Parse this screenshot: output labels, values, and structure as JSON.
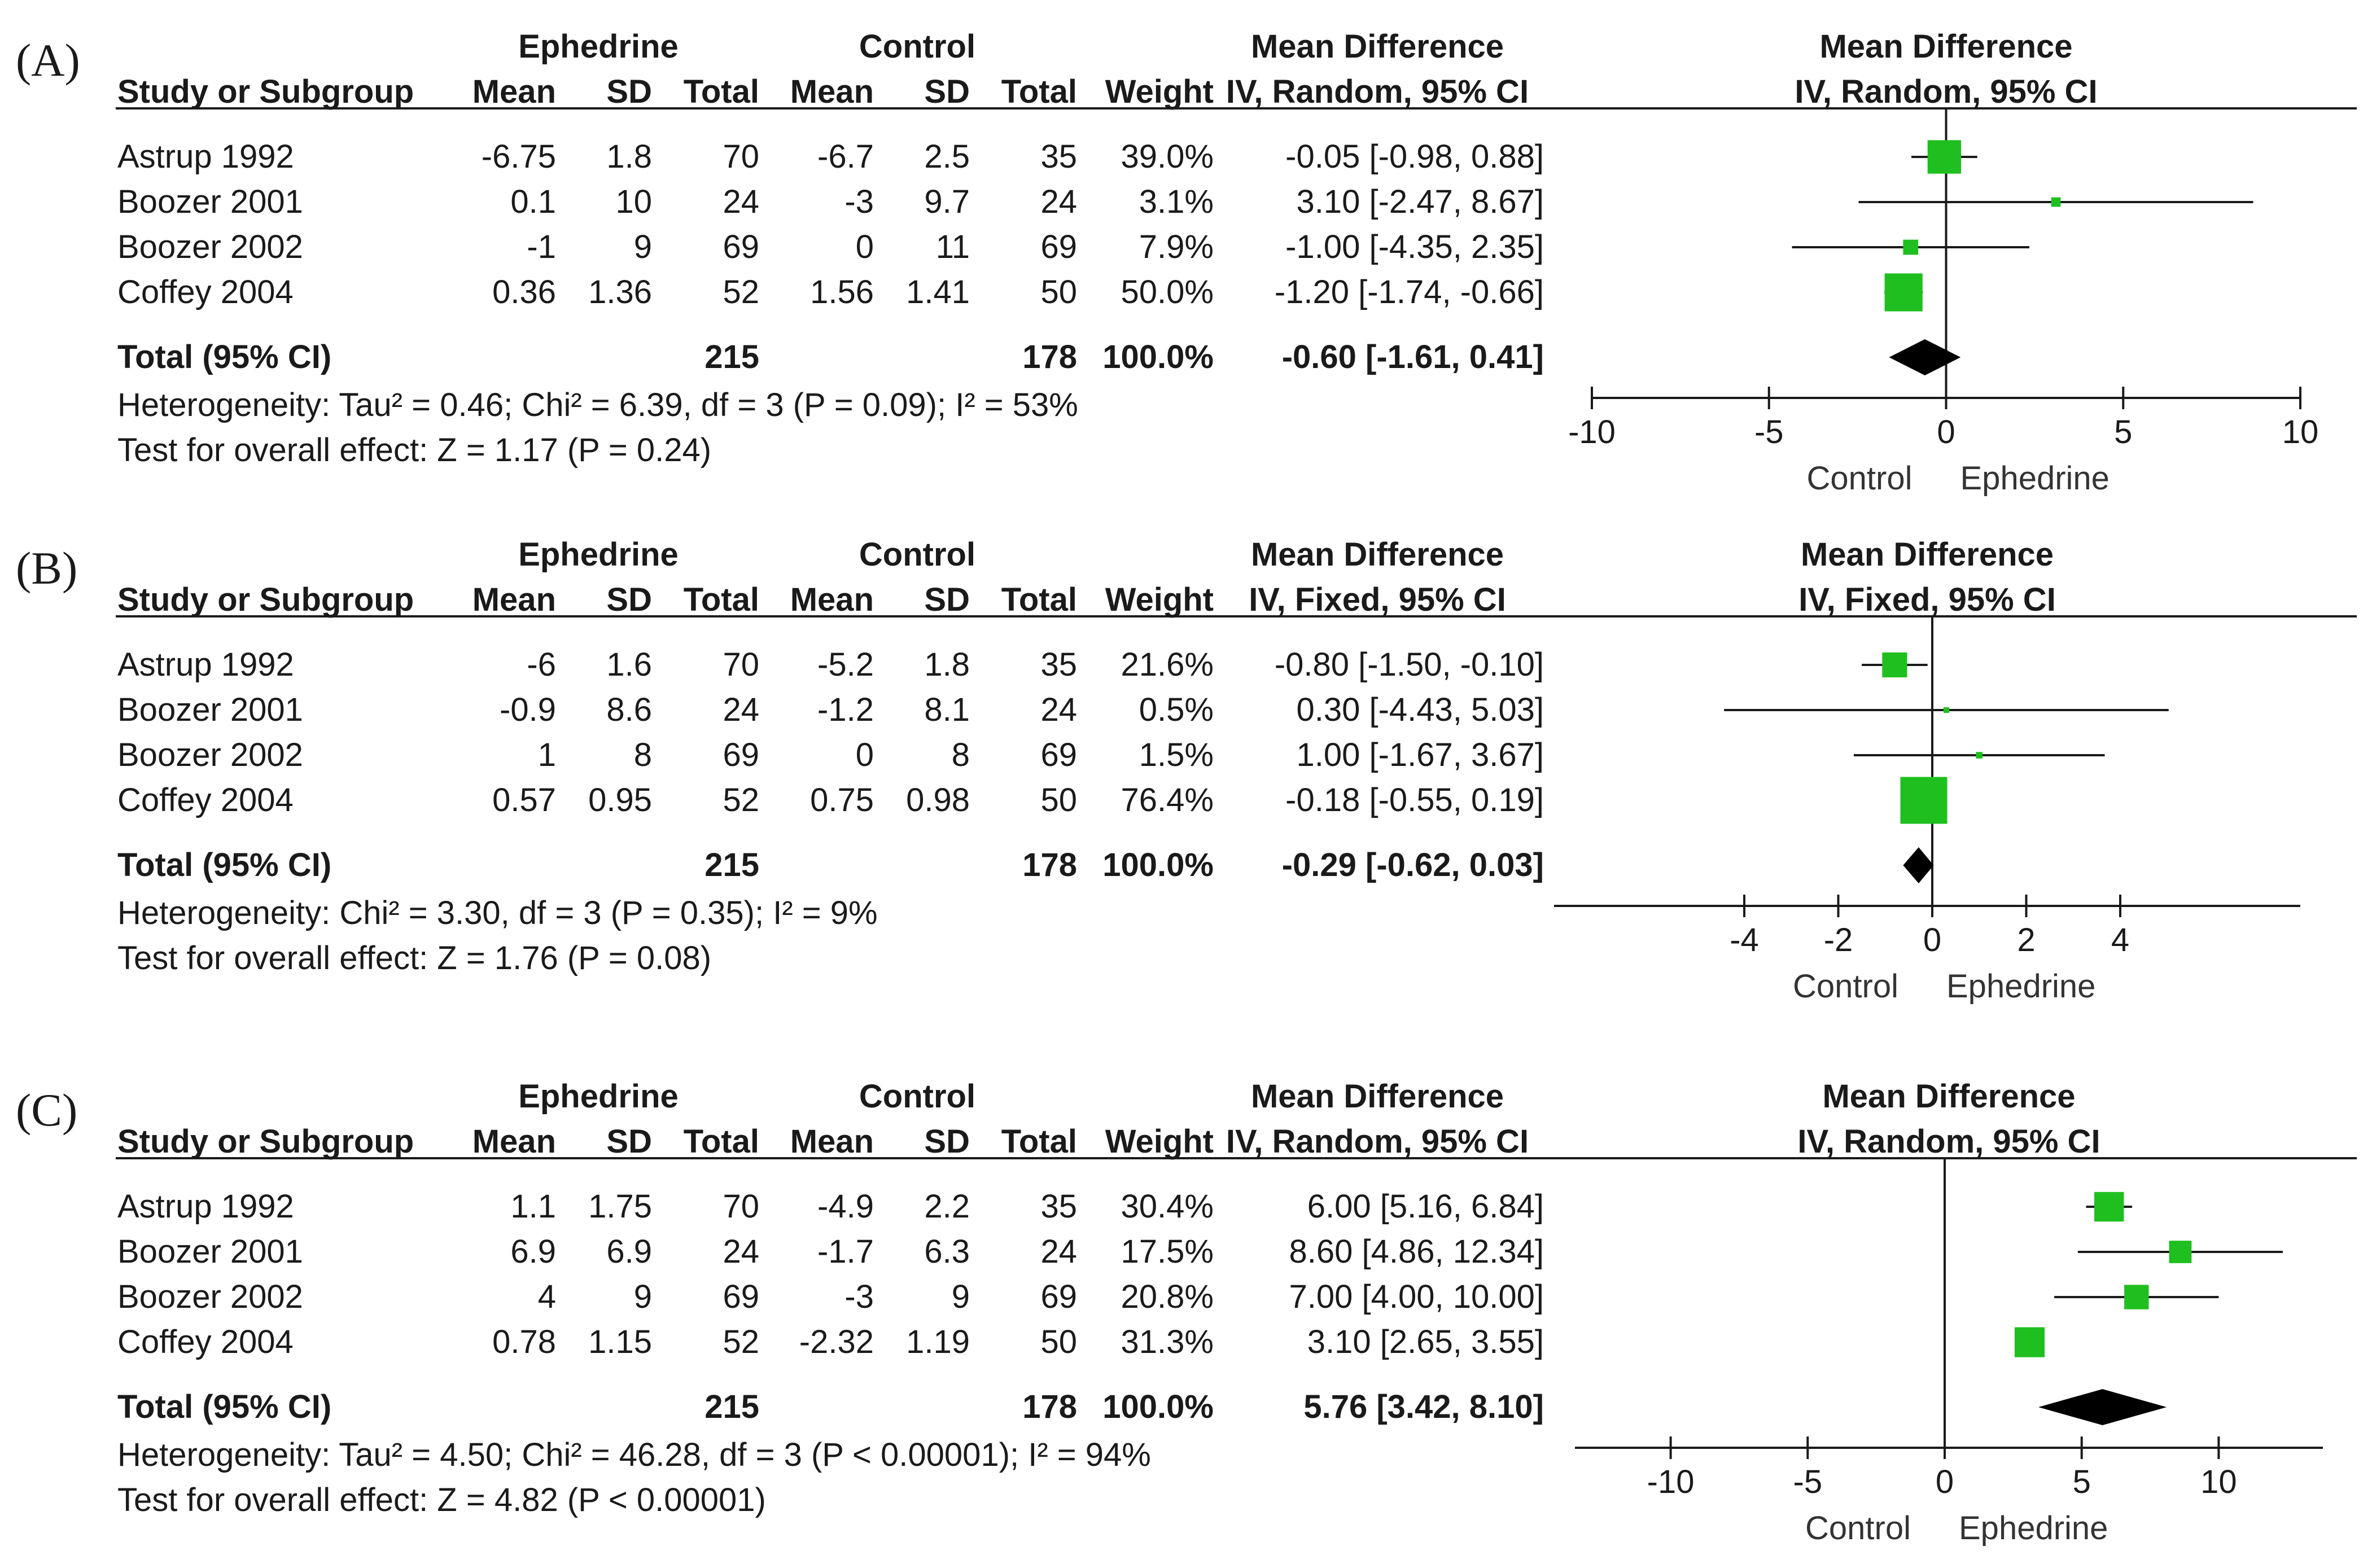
{
  "chart_data": [
    {
      "type": "forest",
      "panel_label": "(A)",
      "group1": "Ephedrine",
      "group2": "Control",
      "ci_header": "Mean Difference",
      "ci_subheader": "IV, Random, 95% CI",
      "plot_header": "Mean Difference",
      "plot_subheader": "IV, Random, 95% CI",
      "columns": [
        "Study or Subgroup",
        "Mean",
        "SD",
        "Total",
        "Mean",
        "SD",
        "Total",
        "Weight"
      ],
      "studies": [
        {
          "name": "Astrup 1992",
          "m1": "-6.75",
          "sd1": "1.8",
          "n1": "70",
          "m2": "-6.7",
          "sd2": "2.5",
          "n2": "35",
          "weight": "39.0%",
          "ci": "-0.05 [-0.98, 0.88]",
          "md": -0.05,
          "lo": -0.98,
          "hi": 0.88,
          "w": 39.0
        },
        {
          "name": "Boozer 2001",
          "m1": "0.1",
          "sd1": "10",
          "n1": "24",
          "m2": "-3",
          "sd2": "9.7",
          "n2": "24",
          "weight": "3.1%",
          "ci": "3.10 [-2.47, 8.67]",
          "md": 3.1,
          "lo": -2.47,
          "hi": 8.67,
          "w": 3.1
        },
        {
          "name": "Boozer 2002",
          "m1": "-1",
          "sd1": "9",
          "n1": "69",
          "m2": "0",
          "sd2": "11",
          "n2": "69",
          "weight": "7.9%",
          "ci": "-1.00 [-4.35, 2.35]",
          "md": -1.0,
          "lo": -4.35,
          "hi": 2.35,
          "w": 7.9
        },
        {
          "name": "Coffey 2004",
          "m1": "0.36",
          "sd1": "1.36",
          "n1": "52",
          "m2": "1.56",
          "sd2": "1.41",
          "n2": "50",
          "weight": "50.0%",
          "ci": "-1.20 [-1.74, -0.66]",
          "md": -1.2,
          "lo": -1.74,
          "hi": -0.66,
          "w": 50.0
        }
      ],
      "total": {
        "label": "Total (95% CI)",
        "n1": "215",
        "n2": "178",
        "weight": "100.0%",
        "ci": "-0.60 [-1.61, 0.41]",
        "md": -0.6,
        "lo": -1.61,
        "hi": 0.41
      },
      "heterogeneity": "Heterogeneity: Tau² = 0.46; Chi² = 6.39, df = 3 (P = 0.09); I² = 53%",
      "overall": "Test for overall effect: Z = 1.17 (P = 0.24)",
      "xlim": [
        -10,
        10
      ],
      "ticks": [
        -10,
        -5,
        0,
        5,
        10
      ],
      "tick_labels": [
        "-10",
        "-5",
        "0",
        "5",
        "10"
      ],
      "favours_left": "Control",
      "favours_right": "Ephedrine"
    },
    {
      "type": "forest",
      "panel_label": "(B)",
      "group1": "Ephedrine",
      "group2": "Control",
      "ci_header": "Mean Difference",
      "ci_subheader": "IV, Fixed, 95% CI",
      "plot_header": "Mean Difference",
      "plot_subheader": "IV, Fixed, 95% CI",
      "columns": [
        "Study or Subgroup",
        "Mean",
        "SD",
        "Total",
        "Mean",
        "SD",
        "Total",
        "Weight"
      ],
      "studies": [
        {
          "name": "Astrup 1992",
          "m1": "-6",
          "sd1": "1.6",
          "n1": "70",
          "m2": "-5.2",
          "sd2": "1.8",
          "n2": "35",
          "weight": "21.6%",
          "ci": "-0.80 [-1.50, -0.10]",
          "md": -0.8,
          "lo": -1.5,
          "hi": -0.1,
          "w": 21.6
        },
        {
          "name": "Boozer 2001",
          "m1": "-0.9",
          "sd1": "8.6",
          "n1": "24",
          "m2": "-1.2",
          "sd2": "8.1",
          "n2": "24",
          "weight": "0.5%",
          "ci": "0.30 [-4.43, 5.03]",
          "md": 0.3,
          "lo": -4.43,
          "hi": 5.03,
          "w": 0.5
        },
        {
          "name": "Boozer 2002",
          "m1": "1",
          "sd1": "8",
          "n1": "69",
          "m2": "0",
          "sd2": "8",
          "n2": "69",
          "weight": "1.5%",
          "ci": "1.00 [-1.67, 3.67]",
          "md": 1.0,
          "lo": -1.67,
          "hi": 3.67,
          "w": 1.5
        },
        {
          "name": "Coffey 2004",
          "m1": "0.57",
          "sd1": "0.95",
          "n1": "52",
          "m2": "0.75",
          "sd2": "0.98",
          "n2": "50",
          "weight": "76.4%",
          "ci": "-0.18 [-0.55, 0.19]",
          "md": -0.18,
          "lo": -0.55,
          "hi": 0.19,
          "w": 76.4
        }
      ],
      "total": {
        "label": "Total (95% CI)",
        "n1": "215",
        "n2": "178",
        "weight": "100.0%",
        "ci": "-0.29 [-0.62, 0.03]",
        "md": -0.29,
        "lo": -0.62,
        "hi": 0.03
      },
      "heterogeneity": "Heterogeneity: Chi² = 3.30, df = 3 (P = 0.35); I² = 9%",
      "overall": "Test for overall effect: Z = 1.76 (P = 0.08)",
      "xlim": [
        -8,
        8
      ],
      "ticks": [
        -4,
        -2,
        0,
        2,
        4
      ],
      "tick_labels": [
        "-4",
        "-2",
        "0",
        "2",
        "4"
      ],
      "favours_left": "Control",
      "favours_right": "Ephedrine"
    },
    {
      "type": "forest",
      "panel_label": "(C)",
      "group1": "Ephedrine",
      "group2": "Control",
      "ci_header": "Mean Difference",
      "ci_subheader": "IV, Random, 95% CI",
      "plot_header": "Mean Difference",
      "plot_subheader": "IV, Random, 95% CI",
      "columns": [
        "Study or Subgroup",
        "Mean",
        "SD",
        "Total",
        "Mean",
        "SD",
        "Total",
        "Weight"
      ],
      "studies": [
        {
          "name": "Astrup 1992",
          "m1": "1.1",
          "sd1": "1.75",
          "n1": "70",
          "m2": "-4.9",
          "sd2": "2.2",
          "n2": "35",
          "weight": "30.4%",
          "ci": "6.00 [5.16, 6.84]",
          "md": 6.0,
          "lo": 5.16,
          "hi": 6.84,
          "w": 30.4
        },
        {
          "name": "Boozer 2001",
          "m1": "6.9",
          "sd1": "6.9",
          "n1": "24",
          "m2": "-1.7",
          "sd2": "6.3",
          "n2": "24",
          "weight": "17.5%",
          "ci": "8.60 [4.86, 12.34]",
          "md": 8.6,
          "lo": 4.86,
          "hi": 12.34,
          "w": 17.5
        },
        {
          "name": "Boozer 2002",
          "m1": "4",
          "sd1": "9",
          "n1": "69",
          "m2": "-3",
          "sd2": "9",
          "n2": "69",
          "weight": "20.8%",
          "ci": "7.00 [4.00, 10.00]",
          "md": 7.0,
          "lo": 4.0,
          "hi": 10.0,
          "w": 20.8
        },
        {
          "name": "Coffey 2004",
          "m1": "0.78",
          "sd1": "1.15",
          "n1": "52",
          "m2": "-2.32",
          "sd2": "1.19",
          "n2": "50",
          "weight": "31.3%",
          "ci": "3.10 [2.65, 3.55]",
          "md": 3.1,
          "lo": 2.65,
          "hi": 3.55,
          "w": 31.3
        }
      ],
      "total": {
        "label": "Total (95% CI)",
        "n1": "215",
        "n2": "178",
        "weight": "100.0%",
        "ci": "5.76 [3.42, 8.10]",
        "md": 5.76,
        "lo": 3.42,
        "hi": 8.1
      },
      "heterogeneity": "Heterogeneity: Tau² = 4.50; Chi² = 46.28, df = 3 (P < 0.00001); I² = 94%",
      "overall": "Test for overall effect: Z = 4.82 (P < 0.00001)",
      "xlim": [
        -13.7,
        13.7
      ],
      "ticks": [
        -10,
        -5,
        0,
        5,
        10
      ],
      "tick_labels": [
        "-10",
        "-5",
        "0",
        "5",
        "10"
      ],
      "favours_left": "Control",
      "favours_right": "Ephedrine"
    }
  ],
  "colors": {
    "marker": "#1fbf1f",
    "line": "#1a1a1a",
    "diamond": "#000000"
  }
}
